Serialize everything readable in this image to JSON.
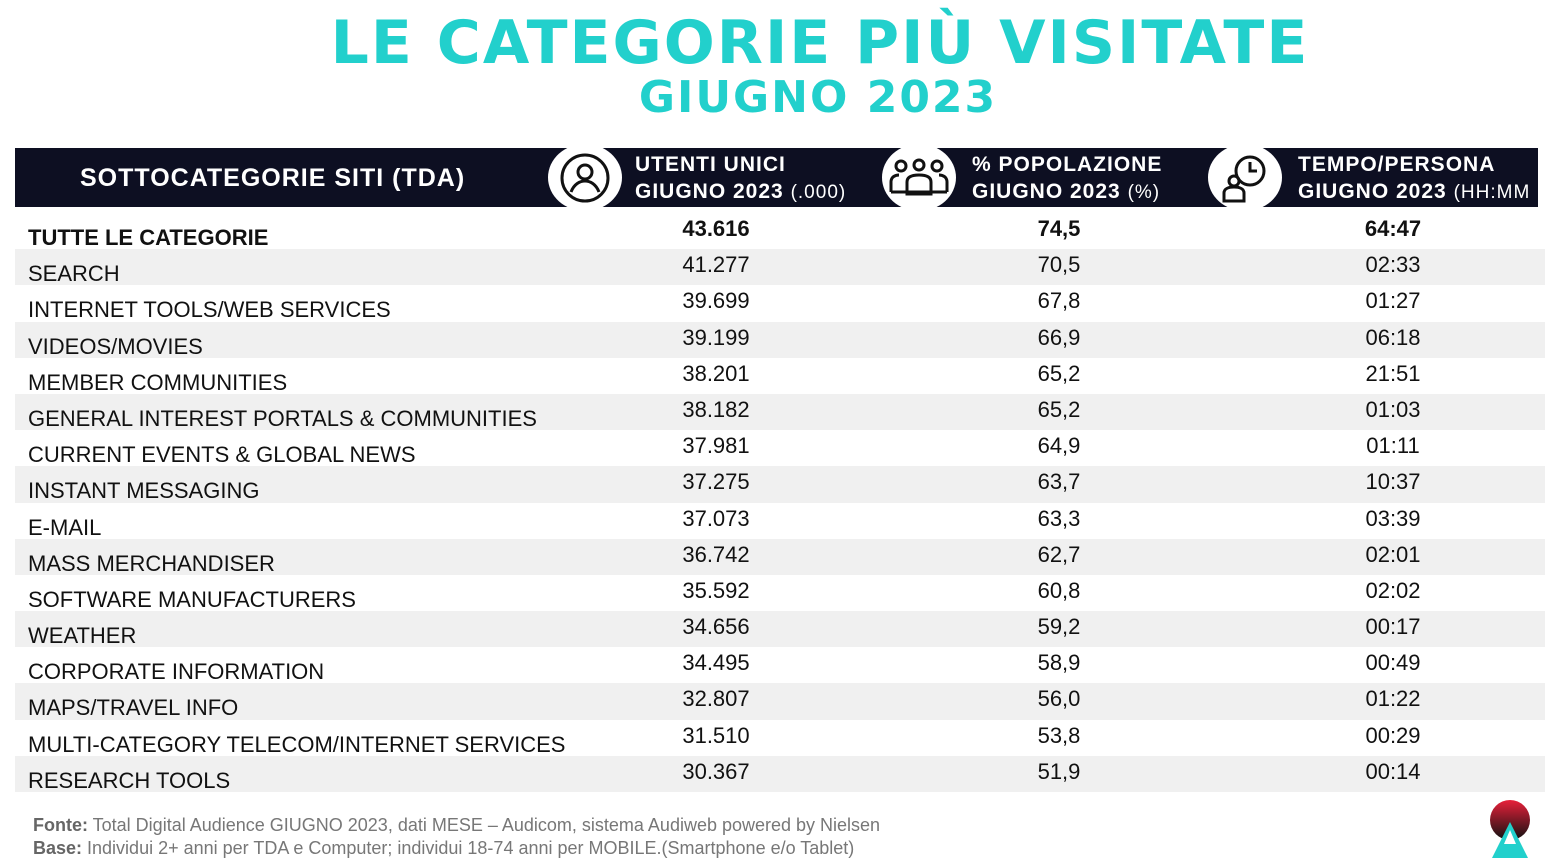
{
  "title": "LE CATEGORIE PIÙ VISITATE",
  "subtitle": "GIUGNO  2023",
  "header": {
    "col0": "SOTTOCATEGORIE SITI  (TDA)",
    "col1_line1": "UTENTI UNICI",
    "col1_line2": "GIUGNO 2023",
    "col1_unit": "(.000)",
    "col2_line1": "% POPOLAZIONE",
    "col2_line2": "GIUGNO 2023",
    "col2_unit": "(%)",
    "col3_line1": "TEMPO/PERSONA",
    "col3_line2": "GIUGNO 2023",
    "col3_unit": "(HH:MM"
  },
  "rows": [
    {
      "name": "TUTTE LE CATEGORIE",
      "users": "43.616",
      "pop": "74,5",
      "time": "64:47"
    },
    {
      "name": "SEARCH",
      "users": "41.277",
      "pop": "70,5",
      "time": "02:33"
    },
    {
      "name": "INTERNET TOOLS/WEB SERVICES",
      "users": "39.699",
      "pop": "67,8",
      "time": "01:27"
    },
    {
      "name": "VIDEOS/MOVIES",
      "users": "39.199",
      "pop": "66,9",
      "time": "06:18"
    },
    {
      "name": "MEMBER COMMUNITIES",
      "users": "38.201",
      "pop": "65,2",
      "time": "21:51"
    },
    {
      "name": "GENERAL INTEREST PORTALS & COMMUNITIES",
      "users": "38.182",
      "pop": "65,2",
      "time": "01:03"
    },
    {
      "name": "CURRENT EVENTS & GLOBAL NEWS",
      "users": "37.981",
      "pop": "64,9",
      "time": "01:11"
    },
    {
      "name": "INSTANT MESSAGING",
      "users": "37.275",
      "pop": "63,7",
      "time": "10:37"
    },
    {
      "name": "E-MAIL",
      "users": "37.073",
      "pop": "63,3",
      "time": "03:39"
    },
    {
      "name": "MASS MERCHANDISER",
      "users": "36.742",
      "pop": "62,7",
      "time": "02:01"
    },
    {
      "name": "SOFTWARE MANUFACTURERS",
      "users": "35.592",
      "pop": "60,8",
      "time": "02:02"
    },
    {
      "name": "WEATHER",
      "users": "34.656",
      "pop": "59,2",
      "time": "00:17"
    },
    {
      "name": "CORPORATE INFORMATION",
      "users": "34.495",
      "pop": "58,9",
      "time": "00:49"
    },
    {
      "name": "MAPS/TRAVEL INFO",
      "users": "32.807",
      "pop": "56,0",
      "time": "01:22"
    },
    {
      "name": "MULTI-CATEGORY TELECOM/INTERNET SERVICES",
      "users": "31.510",
      "pop": "53,8",
      "time": "00:29"
    },
    {
      "name": "RESEARCH TOOLS",
      "users": "30.367",
      "pop": "51,9",
      "time": "00:14"
    }
  ],
  "footer": {
    "fonte_label": "Fonte:",
    "fonte_text": " Total Digital Audience GIUGNO 2023, dati MESE – Audicom, sistema Audiweb powered by Nielsen",
    "base_label": "Base:",
    "base_text": " Individui 2+ anni per TDA e Computer; individui 18-74 anni per MOBILE.(Smartphone e/o Tablet)"
  },
  "colors": {
    "accent": "#22d0cc",
    "header_bg": "#0d0f22",
    "stripe": "#f0f0f0"
  }
}
